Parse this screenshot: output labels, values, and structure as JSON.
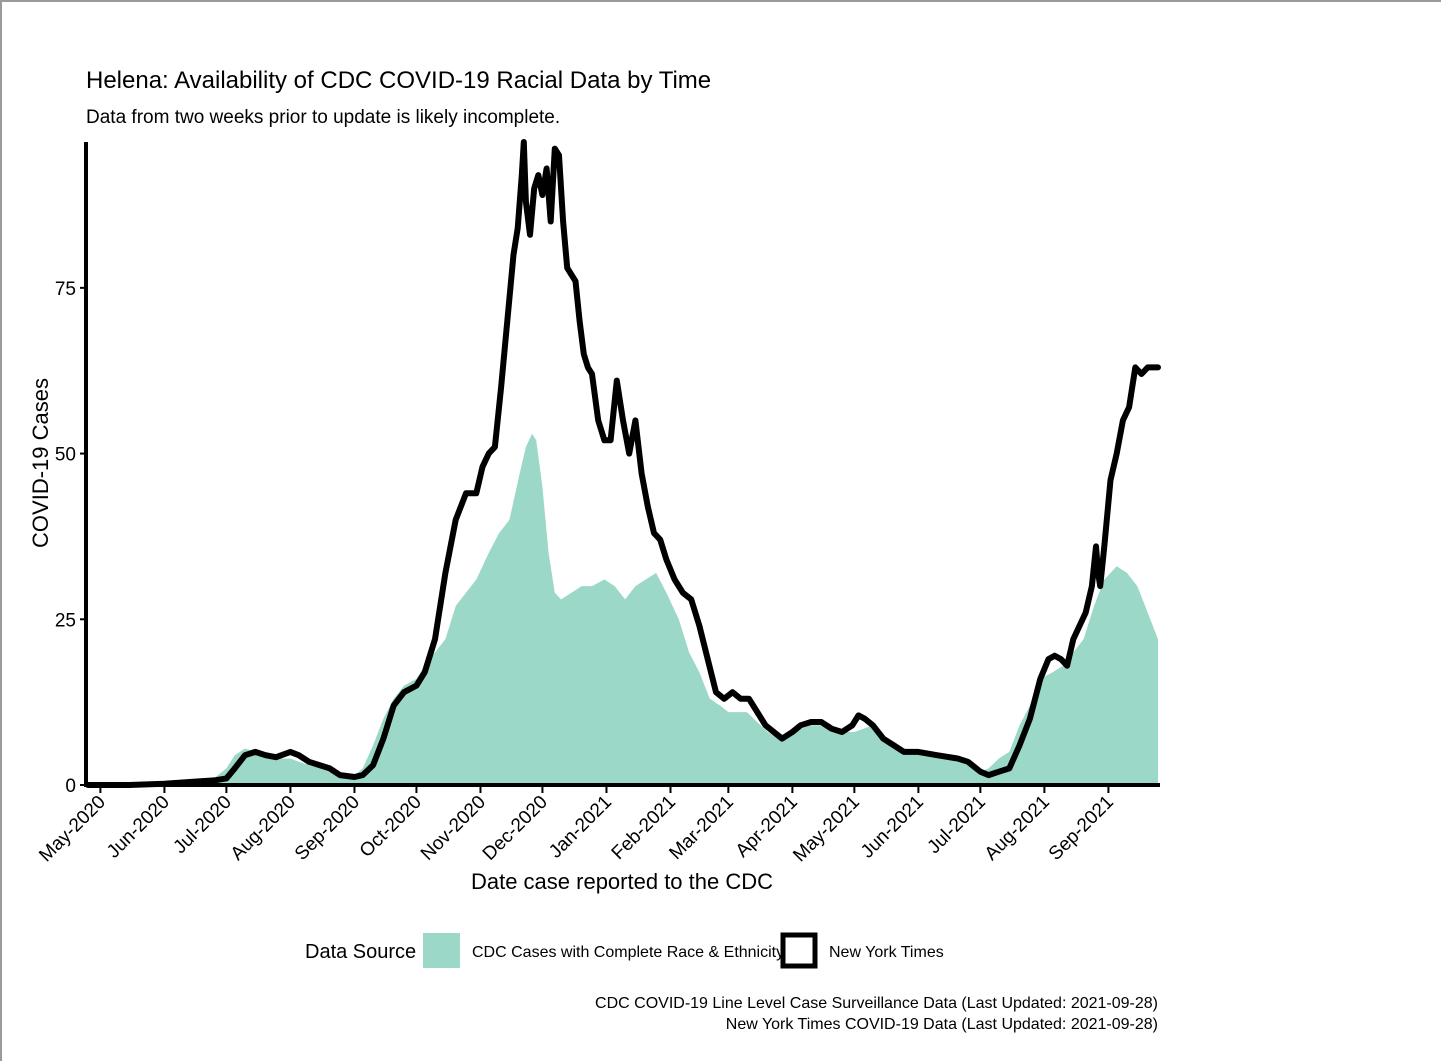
{
  "chart_data": {
    "type": "area",
    "title": "Helena: Availability of CDC COVID-19 Racial Data by Time",
    "subtitle": "Data from two weeks prior to update is likely incomplete.",
    "xlabel": "Date case reported to the CDC",
    "ylabel": "COVID-19 Cases",
    "x_range": [
      "2020-04-25",
      "2021-09-25"
    ],
    "ylim": [
      0,
      97
    ],
    "y_ticks": [
      0,
      25,
      50,
      75
    ],
    "x_ticks": [
      {
        "date": "2020-05-01",
        "label": "May-2020"
      },
      {
        "date": "2020-06-01",
        "label": "Jun-2020"
      },
      {
        "date": "2020-07-01",
        "label": "Jul-2020"
      },
      {
        "date": "2020-08-01",
        "label": "Aug-2020"
      },
      {
        "date": "2020-09-01",
        "label": "Sep-2020"
      },
      {
        "date": "2020-10-01",
        "label": "Oct-2020"
      },
      {
        "date": "2020-11-01",
        "label": "Nov-2020"
      },
      {
        "date": "2020-12-01",
        "label": "Dec-2020"
      },
      {
        "date": "2021-01-01",
        "label": "Jan-2021"
      },
      {
        "date": "2021-02-01",
        "label": "Feb-2021"
      },
      {
        "date": "2021-03-01",
        "label": "Mar-2021"
      },
      {
        "date": "2021-04-01",
        "label": "Apr-2021"
      },
      {
        "date": "2021-05-01",
        "label": "May-2021"
      },
      {
        "date": "2021-06-01",
        "label": "Jun-2021"
      },
      {
        "date": "2021-07-01",
        "label": "Jul-2021"
      },
      {
        "date": "2021-08-01",
        "label": "Aug-2021"
      },
      {
        "date": "2021-09-01",
        "label": "Sep-2021"
      }
    ],
    "grid": false,
    "legend_position": "bottom",
    "legend_title": "Data Source",
    "series": [
      {
        "name": "CDC Cases with Complete Race & Ethnicity",
        "type": "area",
        "color": "#9bd8c8",
        "points": [
          [
            "2020-04-25",
            0
          ],
          [
            "2020-05-15",
            0
          ],
          [
            "2020-06-01",
            0.2
          ],
          [
            "2020-06-15",
            0.5
          ],
          [
            "2020-06-25",
            1
          ],
          [
            "2020-07-01",
            2.5
          ],
          [
            "2020-07-05",
            4.5
          ],
          [
            "2020-07-10",
            5.5
          ],
          [
            "2020-07-15",
            5
          ],
          [
            "2020-07-20",
            4.5
          ],
          [
            "2020-07-25",
            4
          ],
          [
            "2020-08-01",
            4
          ],
          [
            "2020-08-05",
            3.5
          ],
          [
            "2020-08-10",
            3
          ],
          [
            "2020-08-15",
            2.5
          ],
          [
            "2020-08-20",
            2
          ],
          [
            "2020-08-25",
            1.5
          ],
          [
            "2020-09-01",
            1.5
          ],
          [
            "2020-09-05",
            2.5
          ],
          [
            "2020-09-10",
            6
          ],
          [
            "2020-09-15",
            10
          ],
          [
            "2020-09-20",
            13
          ],
          [
            "2020-09-25",
            15
          ],
          [
            "2020-10-01",
            16
          ],
          [
            "2020-10-05",
            18
          ],
          [
            "2020-10-10",
            20
          ],
          [
            "2020-10-15",
            22
          ],
          [
            "2020-10-20",
            27
          ],
          [
            "2020-10-25",
            29
          ],
          [
            "2020-10-30",
            31
          ],
          [
            "2020-11-05",
            35
          ],
          [
            "2020-11-10",
            38
          ],
          [
            "2020-11-15",
            40
          ],
          [
            "2020-11-20",
            47
          ],
          [
            "2020-11-23",
            51
          ],
          [
            "2020-11-26",
            53
          ],
          [
            "2020-11-28",
            52
          ],
          [
            "2020-12-01",
            45
          ],
          [
            "2020-12-04",
            35
          ],
          [
            "2020-12-07",
            29
          ],
          [
            "2020-12-10",
            28
          ],
          [
            "2020-12-15",
            29
          ],
          [
            "2020-12-20",
            30
          ],
          [
            "2020-12-25",
            30
          ],
          [
            "2020-12-31",
            31
          ],
          [
            "2021-01-05",
            30
          ],
          [
            "2021-01-10",
            28
          ],
          [
            "2021-01-15",
            30
          ],
          [
            "2021-01-20",
            31
          ],
          [
            "2021-01-25",
            32
          ],
          [
            "2021-01-30",
            29
          ],
          [
            "2021-02-05",
            25
          ],
          [
            "2021-02-10",
            20
          ],
          [
            "2021-02-15",
            17
          ],
          [
            "2021-02-20",
            13
          ],
          [
            "2021-02-25",
            12
          ],
          [
            "2021-03-01",
            11
          ],
          [
            "2021-03-10",
            11
          ],
          [
            "2021-03-20",
            8
          ],
          [
            "2021-03-25",
            7
          ],
          [
            "2021-04-01",
            8
          ],
          [
            "2021-04-10",
            9
          ],
          [
            "2021-04-20",
            9
          ],
          [
            "2021-04-25",
            8
          ],
          [
            "2021-05-01",
            8
          ],
          [
            "2021-05-10",
            9
          ],
          [
            "2021-05-15",
            7
          ],
          [
            "2021-05-25",
            5.5
          ],
          [
            "2021-06-01",
            5
          ],
          [
            "2021-06-15",
            4
          ],
          [
            "2021-06-25",
            3
          ],
          [
            "2021-07-01",
            2
          ],
          [
            "2021-07-05",
            2.5
          ],
          [
            "2021-07-10",
            4
          ],
          [
            "2021-07-15",
            5
          ],
          [
            "2021-07-20",
            9
          ],
          [
            "2021-07-25",
            12
          ],
          [
            "2021-07-30",
            16
          ],
          [
            "2021-08-05",
            17
          ],
          [
            "2021-08-10",
            18
          ],
          [
            "2021-08-15",
            20
          ],
          [
            "2021-08-20",
            22
          ],
          [
            "2021-08-25",
            27
          ],
          [
            "2021-08-30",
            31
          ],
          [
            "2021-09-05",
            33
          ],
          [
            "2021-09-10",
            32
          ],
          [
            "2021-09-15",
            30
          ],
          [
            "2021-09-20",
            26
          ],
          [
            "2021-09-25",
            22
          ]
        ]
      },
      {
        "name": "New York Times",
        "type": "line",
        "color": "#000000",
        "points": [
          [
            "2020-04-25",
            0
          ],
          [
            "2020-05-15",
            0
          ],
          [
            "2020-06-01",
            0.2
          ],
          [
            "2020-06-15",
            0.5
          ],
          [
            "2020-06-25",
            0.7
          ],
          [
            "2020-07-01",
            1
          ],
          [
            "2020-07-05",
            2.5
          ],
          [
            "2020-07-10",
            4.5
          ],
          [
            "2020-07-15",
            5
          ],
          [
            "2020-07-20",
            4.5
          ],
          [
            "2020-07-25",
            4.2
          ],
          [
            "2020-08-01",
            5
          ],
          [
            "2020-08-05",
            4.5
          ],
          [
            "2020-08-10",
            3.5
          ],
          [
            "2020-08-15",
            3
          ],
          [
            "2020-08-20",
            2.5
          ],
          [
            "2020-08-25",
            1.5
          ],
          [
            "2020-09-01",
            1.2
          ],
          [
            "2020-09-05",
            1.5
          ],
          [
            "2020-09-10",
            3
          ],
          [
            "2020-09-15",
            7
          ],
          [
            "2020-09-20",
            12
          ],
          [
            "2020-09-25",
            14
          ],
          [
            "2020-10-01",
            15
          ],
          [
            "2020-10-05",
            17
          ],
          [
            "2020-10-10",
            22
          ],
          [
            "2020-10-15",
            32
          ],
          [
            "2020-10-20",
            40
          ],
          [
            "2020-10-25",
            44
          ],
          [
            "2020-10-30",
            44
          ],
          [
            "2020-11-02",
            48
          ],
          [
            "2020-11-05",
            50
          ],
          [
            "2020-11-08",
            51
          ],
          [
            "2020-11-11",
            60
          ],
          [
            "2020-11-14",
            70
          ],
          [
            "2020-11-17",
            80
          ],
          [
            "2020-11-19",
            84
          ],
          [
            "2020-11-21",
            92
          ],
          [
            "2020-11-22",
            97
          ],
          [
            "2020-11-23",
            88
          ],
          [
            "2020-11-25",
            83
          ],
          [
            "2020-11-27",
            90
          ],
          [
            "2020-11-29",
            92
          ],
          [
            "2020-12-01",
            89
          ],
          [
            "2020-12-03",
            93
          ],
          [
            "2020-12-05",
            85
          ],
          [
            "2020-12-07",
            96
          ],
          [
            "2020-12-09",
            95
          ],
          [
            "2020-12-11",
            85
          ],
          [
            "2020-12-13",
            78
          ],
          [
            "2020-12-15",
            77
          ],
          [
            "2020-12-17",
            76
          ],
          [
            "2020-12-19",
            70
          ],
          [
            "2020-12-21",
            65
          ],
          [
            "2020-12-23",
            63
          ],
          [
            "2020-12-25",
            62
          ],
          [
            "2020-12-28",
            55
          ],
          [
            "2020-12-31",
            52
          ],
          [
            "2021-01-03",
            52
          ],
          [
            "2021-01-06",
            61
          ],
          [
            "2021-01-09",
            55
          ],
          [
            "2021-01-12",
            50
          ],
          [
            "2021-01-15",
            55
          ],
          [
            "2021-01-18",
            47
          ],
          [
            "2021-01-21",
            42
          ],
          [
            "2021-01-24",
            38
          ],
          [
            "2021-01-27",
            37
          ],
          [
            "2021-01-30",
            34
          ],
          [
            "2021-02-03",
            31
          ],
          [
            "2021-02-07",
            29
          ],
          [
            "2021-02-11",
            28
          ],
          [
            "2021-02-15",
            24
          ],
          [
            "2021-02-19",
            19
          ],
          [
            "2021-02-23",
            14
          ],
          [
            "2021-02-27",
            13
          ],
          [
            "2021-03-03",
            14
          ],
          [
            "2021-03-07",
            13
          ],
          [
            "2021-03-11",
            13
          ],
          [
            "2021-03-15",
            11
          ],
          [
            "2021-03-19",
            9
          ],
          [
            "2021-03-23",
            8
          ],
          [
            "2021-03-27",
            7
          ],
          [
            "2021-04-01",
            8
          ],
          [
            "2021-04-05",
            9
          ],
          [
            "2021-04-10",
            9.5
          ],
          [
            "2021-04-15",
            9.5
          ],
          [
            "2021-04-20",
            8.5
          ],
          [
            "2021-04-25",
            8
          ],
          [
            "2021-04-30",
            9
          ],
          [
            "2021-05-03",
            10.5
          ],
          [
            "2021-05-06",
            10
          ],
          [
            "2021-05-10",
            9
          ],
          [
            "2021-05-15",
            7
          ],
          [
            "2021-05-20",
            6
          ],
          [
            "2021-05-25",
            5
          ],
          [
            "2021-06-01",
            5
          ],
          [
            "2021-06-10",
            4.5
          ],
          [
            "2021-06-20",
            4
          ],
          [
            "2021-06-25",
            3.5
          ],
          [
            "2021-07-01",
            2
          ],
          [
            "2021-07-05",
            1.5
          ],
          [
            "2021-07-10",
            2
          ],
          [
            "2021-07-15",
            2.5
          ],
          [
            "2021-07-20",
            6
          ],
          [
            "2021-07-25",
            10
          ],
          [
            "2021-07-30",
            16
          ],
          [
            "2021-08-03",
            19
          ],
          [
            "2021-08-06",
            19.5
          ],
          [
            "2021-08-09",
            19
          ],
          [
            "2021-08-12",
            18
          ],
          [
            "2021-08-15",
            22
          ],
          [
            "2021-08-18",
            24
          ],
          [
            "2021-08-21",
            26
          ],
          [
            "2021-08-24",
            30
          ],
          [
            "2021-08-26",
            36
          ],
          [
            "2021-08-27",
            32
          ],
          [
            "2021-08-28",
            30
          ],
          [
            "2021-08-30",
            36
          ],
          [
            "2021-09-02",
            46
          ],
          [
            "2021-09-05",
            50
          ],
          [
            "2021-09-08",
            55
          ],
          [
            "2021-09-11",
            57
          ],
          [
            "2021-09-14",
            63
          ],
          [
            "2021-09-17",
            62
          ],
          [
            "2021-09-20",
            63
          ],
          [
            "2021-09-25",
            63
          ]
        ]
      }
    ],
    "captions": [
      "CDC COVID-19 Line Level Case Surveillance Data (Last Updated: 2021-09-28)",
      "New York Times COVID-19 Data (Last Updated: 2021-09-28)"
    ]
  }
}
